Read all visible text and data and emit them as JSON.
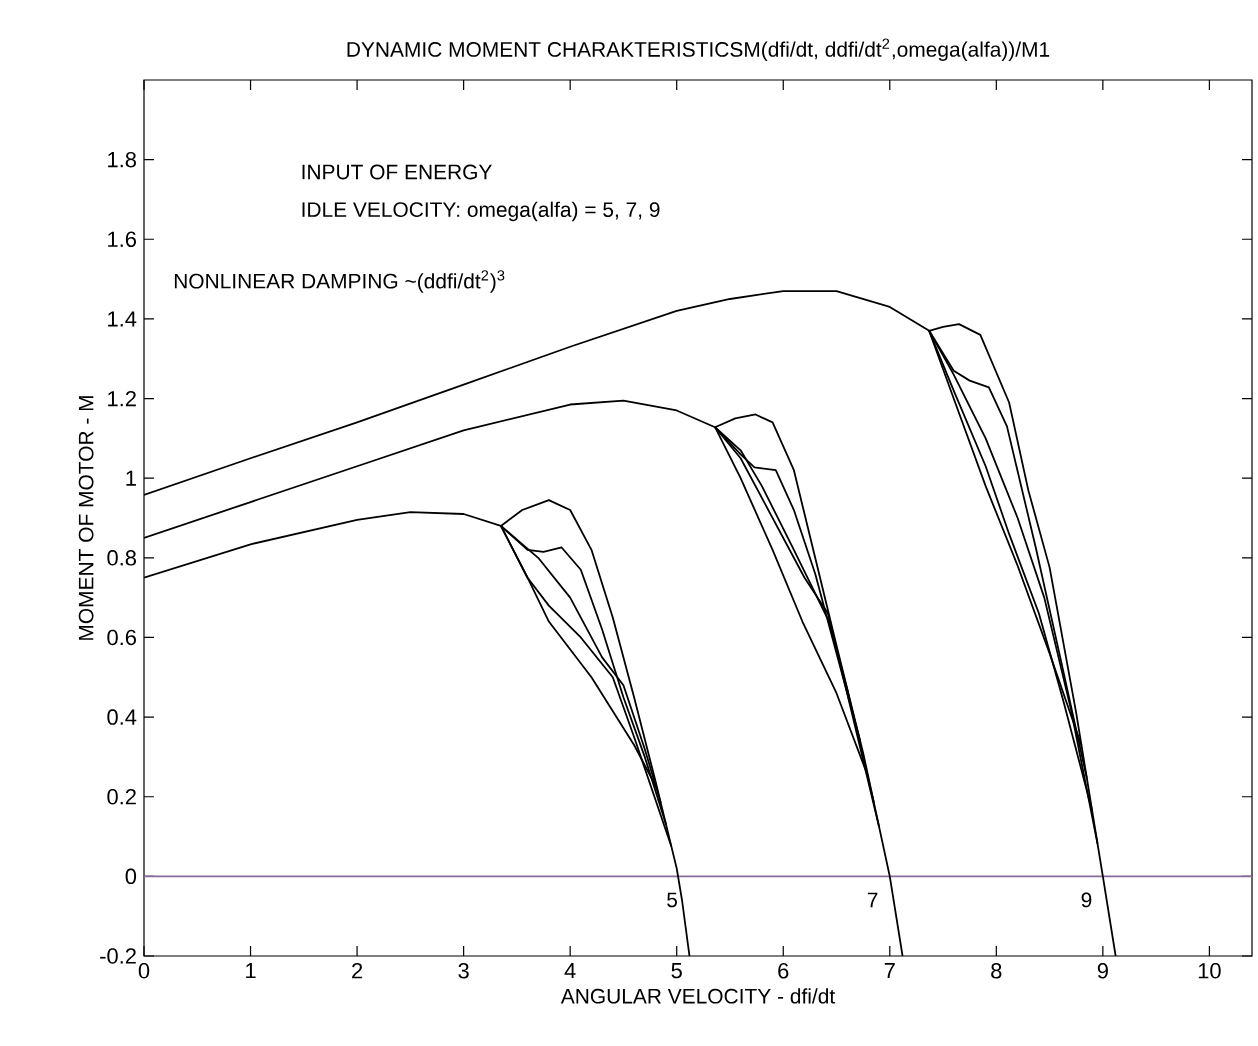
{
  "chart_data": {
    "type": "line",
    "title": "DYNAMIC MOMENT CHARAKTERISTICSM(dfi/dt, ddfi/dt$^{2}$,omega(alfa))/M1",
    "xlabel": "ANGULAR VELOCITY - dfi/dt",
    "ylabel": "MOMENT OF MOTOR - M",
    "xlim": [
      0,
      10.4
    ],
    "ylim": [
      -0.2,
      2
    ],
    "xticks": [
      0,
      1,
      2,
      3,
      4,
      5,
      6,
      7,
      8,
      9,
      10
    ],
    "yticks": [
      -0.2,
      0,
      0.2,
      0.4,
      0.6,
      0.8,
      1,
      1.2,
      1.4,
      1.6,
      1.8
    ],
    "grid": false,
    "marker": "none",
    "line_style": "solid",
    "ref_lines": [
      {
        "axis": "y",
        "value": 0,
        "color": "#8a6a9a"
      }
    ],
    "annotations": [
      "INPUT OF ENERGY",
      "IDLE VELOCITY: omega(alfa) = 5, 7, 9",
      "NONLINEAR DAMPING ~(ddfi/dt$^{2}$)$^{3}$",
      "5",
      "7",
      "9"
    ],
    "series": [
      {
        "color": "#000000",
        "x": [
          0,
          1,
          2,
          2.5,
          3,
          3.35,
          3.55,
          3.8,
          4.0,
          4.2,
          4.4,
          4.6,
          4.8,
          5.0,
          5.05,
          5.12
        ],
        "values": [
          0.75,
          0.834,
          0.895,
          0.915,
          0.91,
          0.88,
          0.92,
          0.945,
          0.92,
          0.82,
          0.65,
          0.45,
          0.24,
          0.02,
          -0.06,
          -0.2
        ]
      },
      {
        "color": "#000000",
        "x": [
          3.35,
          3.6,
          3.75,
          3.92,
          4.1,
          4.3,
          4.5,
          4.7,
          4.9
        ],
        "values": [
          0.88,
          0.82,
          0.815,
          0.826,
          0.77,
          0.62,
          0.45,
          0.3,
          0.13
        ]
      },
      {
        "color": "#000000",
        "x": [
          3.35,
          3.7,
          4.0,
          4.3,
          4.5,
          4.7,
          4.85
        ],
        "values": [
          0.88,
          0.8,
          0.7,
          0.55,
          0.48,
          0.32,
          0.185
        ]
      },
      {
        "color": "#000000",
        "x": [
          3.35,
          3.6,
          3.8,
          4.1,
          4.4,
          4.6,
          4.95
        ],
        "values": [
          0.88,
          0.75,
          0.68,
          0.6,
          0.5,
          0.35,
          0.075
        ]
      },
      {
        "color": "#000000",
        "x": [
          3.35,
          3.6,
          3.8,
          4.2,
          4.6,
          4.82
        ],
        "values": [
          0.88,
          0.75,
          0.64,
          0.5,
          0.33,
          0.218
        ]
      },
      {
        "color": "#000000",
        "x": [
          0,
          1,
          2,
          3,
          4,
          4.5,
          5,
          5.36,
          5.55,
          5.74,
          5.9,
          6.1,
          6.3,
          6.5,
          6.75,
          7.0,
          7.12
        ],
        "values": [
          0.85,
          0.94,
          1.03,
          1.12,
          1.185,
          1.195,
          1.17,
          1.128,
          1.15,
          1.16,
          1.14,
          1.02,
          0.8,
          0.58,
          0.31,
          0,
          -0.2
        ]
      },
      {
        "color": "#000000",
        "x": [
          5.36,
          5.6,
          5.73,
          5.93,
          6.1,
          6.3,
          6.5,
          6.72
        ],
        "values": [
          1.128,
          1.06,
          1.027,
          1.02,
          0.92,
          0.76,
          0.56,
          0.342
        ]
      },
      {
        "color": "#000000",
        "x": [
          5.36,
          5.6,
          5.8,
          6.1,
          6.43,
          6.6,
          6.85
        ],
        "values": [
          1.128,
          1.07,
          0.98,
          0.82,
          0.64,
          0.47,
          0.186
        ]
      },
      {
        "color": "#000000",
        "x": [
          5.36,
          5.6,
          5.9,
          6.2,
          6.42,
          6.6,
          6.9
        ],
        "values": [
          1.128,
          1.05,
          0.9,
          0.75,
          0.66,
          0.46,
          0.124
        ]
      },
      {
        "color": "#000000",
        "x": [
          5.36,
          5.6,
          5.9,
          6.18,
          6.5,
          6.8
        ],
        "values": [
          1.128,
          1.0,
          0.82,
          0.64,
          0.46,
          0.248
        ]
      },
      {
        "color": "#000000",
        "x": [
          0,
          1,
          2,
          3,
          4,
          5,
          5.5,
          6,
          6.5,
          7,
          7.37,
          7.5,
          7.65,
          7.85,
          8.12,
          8.3,
          8.5,
          8.75,
          9.0,
          9.12
        ],
        "values": [
          0.958,
          1.05,
          1.14,
          1.235,
          1.33,
          1.42,
          1.45,
          1.47,
          1.47,
          1.43,
          1.37,
          1.38,
          1.387,
          1.36,
          1.19,
          0.97,
          0.776,
          0.41,
          0,
          -0.2
        ]
      },
      {
        "color": "#000000",
        "x": [
          7.37,
          7.6,
          7.75,
          7.93,
          8.1,
          8.37,
          8.6,
          8.85
        ],
        "values": [
          1.37,
          1.27,
          1.245,
          1.228,
          1.13,
          0.826,
          0.55,
          0.246
        ]
      },
      {
        "color": "#000000",
        "x": [
          7.37,
          7.6,
          7.9,
          8.2,
          8.45,
          8.7,
          8.95
        ],
        "values": [
          1.37,
          1.26,
          1.1,
          0.9,
          0.7,
          0.42,
          0.082
        ]
      },
      {
        "color": "#000000",
        "x": [
          7.37,
          7.6,
          7.9,
          8.12,
          8.4,
          8.63,
          8.9
        ],
        "values": [
          1.37,
          1.22,
          1.03,
          0.86,
          0.66,
          0.44,
          0.164
        ]
      },
      {
        "color": "#000000",
        "x": [
          7.37,
          7.6,
          7.9,
          8.2,
          8.5,
          8.8
        ],
        "values": [
          1.37,
          1.2,
          0.98,
          0.78,
          0.56,
          0.328
        ]
      }
    ]
  }
}
